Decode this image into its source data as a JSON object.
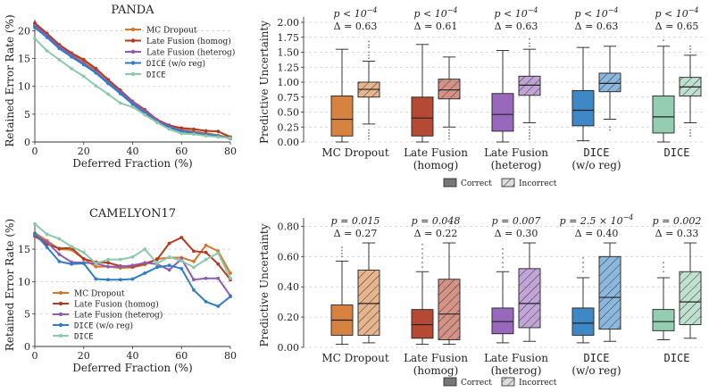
{
  "chart_data": [
    {
      "type": "line",
      "title": "PANDA",
      "xlabel": "Deferred Fraction (%)",
      "ylabel": "Retained Error Rate (%)",
      "xlim": [
        0,
        80
      ],
      "ylim": [
        0,
        22
      ],
      "xticks": [
        0,
        20,
        40,
        60,
        80
      ],
      "yticks": [
        0,
        5,
        10,
        15,
        20
      ],
      "grid": "y-dashed",
      "legend": "top-right",
      "x": [
        0,
        5,
        10,
        15,
        20,
        25,
        30,
        35,
        40,
        45,
        50,
        55,
        60,
        65,
        70,
        75,
        80
      ],
      "series": [
        {
          "name": "MC Dropout",
          "color": "#d4782f",
          "values": [
            21.2,
            19.3,
            17.3,
            15.9,
            14.5,
            12.8,
            10.6,
            8.9,
            7.0,
            5.4,
            3.8,
            2.8,
            2.2,
            1.9,
            1.6,
            1.2,
            0.8
          ]
        },
        {
          "name": "Late Fusion (homog)",
          "color": "#b03a22",
          "values": [
            21.4,
            19.5,
            17.5,
            16.0,
            14.8,
            13.2,
            11.2,
            9.3,
            7.3,
            5.8,
            4.0,
            3.0,
            2.5,
            2.3,
            2.0,
            1.9,
            0.9
          ]
        },
        {
          "name": "Late Fusion (heterog)",
          "color": "#8e5bb5",
          "values": [
            20.9,
            19.1,
            17.1,
            15.6,
            14.1,
            12.6,
            10.8,
            9.0,
            7.2,
            5.6,
            3.9,
            2.8,
            2.0,
            1.7,
            1.4,
            1.1,
            0.7
          ]
        },
        {
          "name": "DICE (w/o reg)",
          "color": "#2f7ec1",
          "mono_prefix": "DICE",
          "suffix": " (w/o reg)",
          "values": [
            20.6,
            18.8,
            16.8,
            15.3,
            13.9,
            12.4,
            10.5,
            8.7,
            6.8,
            5.2,
            3.6,
            2.6,
            1.9,
            1.6,
            1.3,
            1.1,
            0.6
          ]
        },
        {
          "name": "DICE",
          "color": "#8cc9a9",
          "mono_prefix": "DICE",
          "suffix": "",
          "values": [
            18.6,
            16.4,
            14.8,
            13.2,
            11.8,
            10.1,
            8.6,
            7.0,
            6.3,
            4.9,
            3.5,
            2.3,
            1.5,
            1.4,
            1.1,
            0.9,
            0.7
          ]
        }
      ]
    },
    {
      "type": "box",
      "ylabel": "Predictive Uncertainty",
      "ylim": [
        0,
        2.0
      ],
      "yticks": [
        0.0,
        0.25,
        0.5,
        0.75,
        1.0,
        1.25,
        1.5,
        1.75,
        2.0
      ],
      "ytick_labels": [
        "0.00",
        "0.25",
        "0.50",
        "0.75",
        "1.00",
        "1.25",
        "1.50",
        "1.75",
        "2.00"
      ],
      "grid": "y-dashed",
      "legend": "bottom-center",
      "legend_entries": [
        "Correct",
        "Incorrect"
      ],
      "groups": [
        {
          "label1": "MC Dropout",
          "label2": "",
          "color": "#d4782f",
          "p": "p < 10^{-4}",
          "p_text": "p < 10",
          "p_exp": "−4",
          "delta": "Δ = 0.63",
          "correct": {
            "whislo": 0.0,
            "q1": 0.1,
            "med": 0.38,
            "q3": 0.77,
            "whishi": 1.55,
            "fliers": []
          },
          "incorrect": {
            "whislo": 0.3,
            "q1": 0.75,
            "med": 0.88,
            "q3": 1.0,
            "whishi": 1.35,
            "fliers": [
              0.05,
              0.1,
              0.15,
              0.2,
              1.4,
              1.45,
              1.5,
              1.58,
              1.62,
              1.68
            ]
          }
        },
        {
          "label1": "Late Fusion",
          "label2": "(homog)",
          "color": "#b03a22",
          "p": "p < 10^{-4}",
          "p_text": "p < 10",
          "p_exp": "−4",
          "delta": "Δ = 0.61",
          "correct": {
            "whislo": 0.0,
            "q1": 0.1,
            "med": 0.4,
            "q3": 0.75,
            "whishi": 1.63,
            "fliers": []
          },
          "incorrect": {
            "whislo": 0.25,
            "q1": 0.72,
            "med": 0.87,
            "q3": 1.05,
            "whishi": 1.42,
            "fliers": [
              0.05,
              0.1,
              0.15,
              0.2
            ]
          }
        },
        {
          "label1": "Late Fusion",
          "label2": "(heterog)",
          "color": "#8e5bb5",
          "p": "p < 10^{-4}",
          "p_text": "p < 10",
          "p_exp": "−4",
          "delta": "Δ = 0.63",
          "correct": {
            "whislo": 0.0,
            "q1": 0.18,
            "med": 0.46,
            "q3": 0.81,
            "whishi": 1.53,
            "fliers": []
          },
          "incorrect": {
            "whislo": 0.32,
            "q1": 0.78,
            "med": 0.95,
            "q3": 1.1,
            "whishi": 1.55,
            "fliers": [
              0.05,
              0.1,
              0.15,
              0.2,
              0.25,
              1.6,
              1.65,
              1.72
            ]
          }
        },
        {
          "label1": "DICE",
          "label2": "(w/o reg)",
          "mono": true,
          "color": "#2f7ec1",
          "p": "p < 10^{-4}",
          "p_text": "p < 10",
          "p_exp": "−4",
          "delta": "Δ = 0.63",
          "correct": {
            "whislo": 0.02,
            "q1": 0.27,
            "med": 0.53,
            "q3": 0.86,
            "whishi": 1.58,
            "fliers": []
          },
          "incorrect": {
            "whislo": 0.38,
            "q1": 0.84,
            "med": 0.98,
            "q3": 1.15,
            "whishi": 1.6,
            "fliers": [
              0.2,
              0.25
            ]
          }
        },
        {
          "label1": "DICE",
          "label2": "",
          "mono": true,
          "color": "#8cc9a9",
          "p": "p < 10^{-4}",
          "p_text": "p < 10",
          "p_exp": "−4",
          "delta": "Δ = 0.65",
          "correct": {
            "whislo": 0.0,
            "q1": 0.15,
            "med": 0.42,
            "q3": 0.77,
            "whishi": 1.6,
            "fliers": [
              1.7
            ]
          },
          "incorrect": {
            "whislo": 0.32,
            "q1": 0.77,
            "med": 0.92,
            "q3": 1.08,
            "whishi": 1.45,
            "fliers": [
              0.1,
              0.15,
              0.2,
              1.5,
              1.55,
              1.6
            ]
          }
        }
      ]
    },
    {
      "type": "line",
      "title": "CAMELYON17",
      "xlabel": "Deferred Fraction (%)",
      "ylabel": "Retained Error Rate (%)",
      "xlim": [
        0,
        80
      ],
      "ylim": [
        0,
        19
      ],
      "xticks": [
        0,
        20,
        40,
        60,
        80
      ],
      "yticks": [
        0,
        5,
        10,
        15
      ],
      "grid": "y-dashed",
      "legend": "bottom-left",
      "x": [
        0,
        5,
        10,
        15,
        20,
        25,
        30,
        35,
        40,
        45,
        50,
        55,
        60,
        65,
        70,
        75,
        80
      ],
      "series": [
        {
          "name": "MC Dropout",
          "color": "#d4782f",
          "values": [
            17.5,
            16.3,
            15.0,
            14.9,
            13.5,
            12.3,
            12.3,
            12.1,
            12.2,
            12.6,
            13.5,
            13.7,
            13.7,
            13.1,
            15.6,
            14.7,
            11.3
          ]
        },
        {
          "name": "Late Fusion (homog)",
          "color": "#b03a22",
          "values": [
            17.0,
            15.8,
            15.1,
            15.2,
            13.5,
            13.0,
            12.9,
            12.4,
            12.3,
            12.8,
            13.4,
            15.9,
            16.8,
            14.7,
            14.5,
            12.7,
            10.3
          ]
        },
        {
          "name": "Late Fusion (heterog)",
          "color": "#8e5bb5",
          "values": [
            17.2,
            16.1,
            14.2,
            13.0,
            12.9,
            12.8,
            12.3,
            12.3,
            12.5,
            12.9,
            12.7,
            11.8,
            13.5,
            10.3,
            10.5,
            10.5,
            7.8
          ]
        },
        {
          "name": "DICE (w/o reg)",
          "color": "#2f7ec1",
          "mono_prefix": "DICE",
          "suffix": " (w/o reg)",
          "values": [
            17.4,
            15.3,
            13.1,
            12.7,
            12.8,
            10.4,
            10.3,
            10.3,
            10.4,
            11.3,
            12.2,
            12.5,
            12.0,
            8.7,
            6.9,
            6.2,
            7.7
          ]
        },
        {
          "name": "DICE",
          "color": "#8cc9a9",
          "mono_prefix": "DICE",
          "suffix": "",
          "values": [
            18.9,
            17.3,
            16.6,
            15.4,
            14.5,
            12.8,
            13.4,
            13.4,
            13.8,
            15.0,
            12.8,
            13.8,
            13.2,
            12.2,
            13.4,
            14.4,
            10.5
          ]
        }
      ]
    },
    {
      "type": "box",
      "ylabel": "Predictive Uncertainty",
      "ylim": [
        0,
        0.82
      ],
      "yticks": [
        0.0,
        0.2,
        0.4,
        0.6,
        0.8
      ],
      "ytick_labels": [
        "0.00",
        "0.20",
        "0.40",
        "0.60",
        "0.80"
      ],
      "grid": "y-dashed",
      "legend": "bottom-center",
      "legend_entries": [
        "Correct",
        "Incorrect"
      ],
      "groups": [
        {
          "label1": "MC Dropout",
          "label2": "",
          "color": "#d4782f",
          "p_text": "p = 0.015",
          "p_exp": "",
          "delta": "Δ = 0.27",
          "correct": {
            "whislo": 0.02,
            "q1": 0.08,
            "med": 0.18,
            "q3": 0.28,
            "whishi": 0.57,
            "fliers": [
              0.6,
              0.62,
              0.64,
              0.66
            ]
          },
          "incorrect": {
            "whislo": 0.03,
            "q1": 0.08,
            "med": 0.29,
            "q3": 0.51,
            "whishi": 0.69,
            "fliers": []
          }
        },
        {
          "label1": "Late Fusion",
          "label2": "(homog)",
          "color": "#b03a22",
          "p_text": "p = 0.048",
          "p_exp": "",
          "delta": "Δ = 0.22",
          "correct": {
            "whislo": 0.02,
            "q1": 0.06,
            "med": 0.15,
            "q3": 0.25,
            "whishi": 0.5,
            "fliers": [
              0.53,
              0.56,
              0.59,
              0.62,
              0.65,
              0.68
            ]
          },
          "incorrect": {
            "whislo": 0.02,
            "q1": 0.05,
            "med": 0.22,
            "q3": 0.45,
            "whishi": 0.69,
            "fliers": []
          }
        },
        {
          "label1": "Late Fusion",
          "label2": "(heterog)",
          "color": "#8e5bb5",
          "p_text": "p = 0.007",
          "p_exp": "",
          "delta": "Δ = 0.30",
          "correct": {
            "whislo": 0.03,
            "q1": 0.09,
            "med": 0.17,
            "q3": 0.26,
            "whishi": 0.5,
            "fliers": [
              0.53,
              0.56,
              0.59,
              0.62,
              0.65
            ]
          },
          "incorrect": {
            "whislo": 0.04,
            "q1": 0.13,
            "med": 0.29,
            "q3": 0.52,
            "whishi": 0.69,
            "fliers": []
          }
        },
        {
          "label1": "DICE",
          "label2": "(w/o reg)",
          "mono": true,
          "color": "#2f7ec1",
          "p_text": "p = 2.5 × 10",
          "p_exp": "−4",
          "delta": "Δ = 0.40",
          "correct": {
            "whislo": 0.03,
            "q1": 0.08,
            "med": 0.16,
            "q3": 0.26,
            "whishi": 0.46,
            "fliers": [
              0.5,
              0.53,
              0.56,
              0.59
            ]
          },
          "incorrect": {
            "whislo": 0.04,
            "q1": 0.12,
            "med": 0.33,
            "q3": 0.6,
            "whishi": 0.69,
            "fliers": []
          }
        },
        {
          "label1": "DICE",
          "label2": "",
          "mono": true,
          "color": "#8cc9a9",
          "p_text": "p = 0.002",
          "p_exp": "",
          "delta": "Δ = 0.33",
          "correct": {
            "whislo": 0.05,
            "q1": 0.11,
            "med": 0.17,
            "q3": 0.25,
            "whishi": 0.46,
            "fliers": [
              0.5,
              0.53,
              0.56
            ]
          },
          "incorrect": {
            "whislo": 0.06,
            "q1": 0.15,
            "med": 0.3,
            "q3": 0.5,
            "whishi": 0.69,
            "fliers": []
          }
        }
      ]
    }
  ]
}
